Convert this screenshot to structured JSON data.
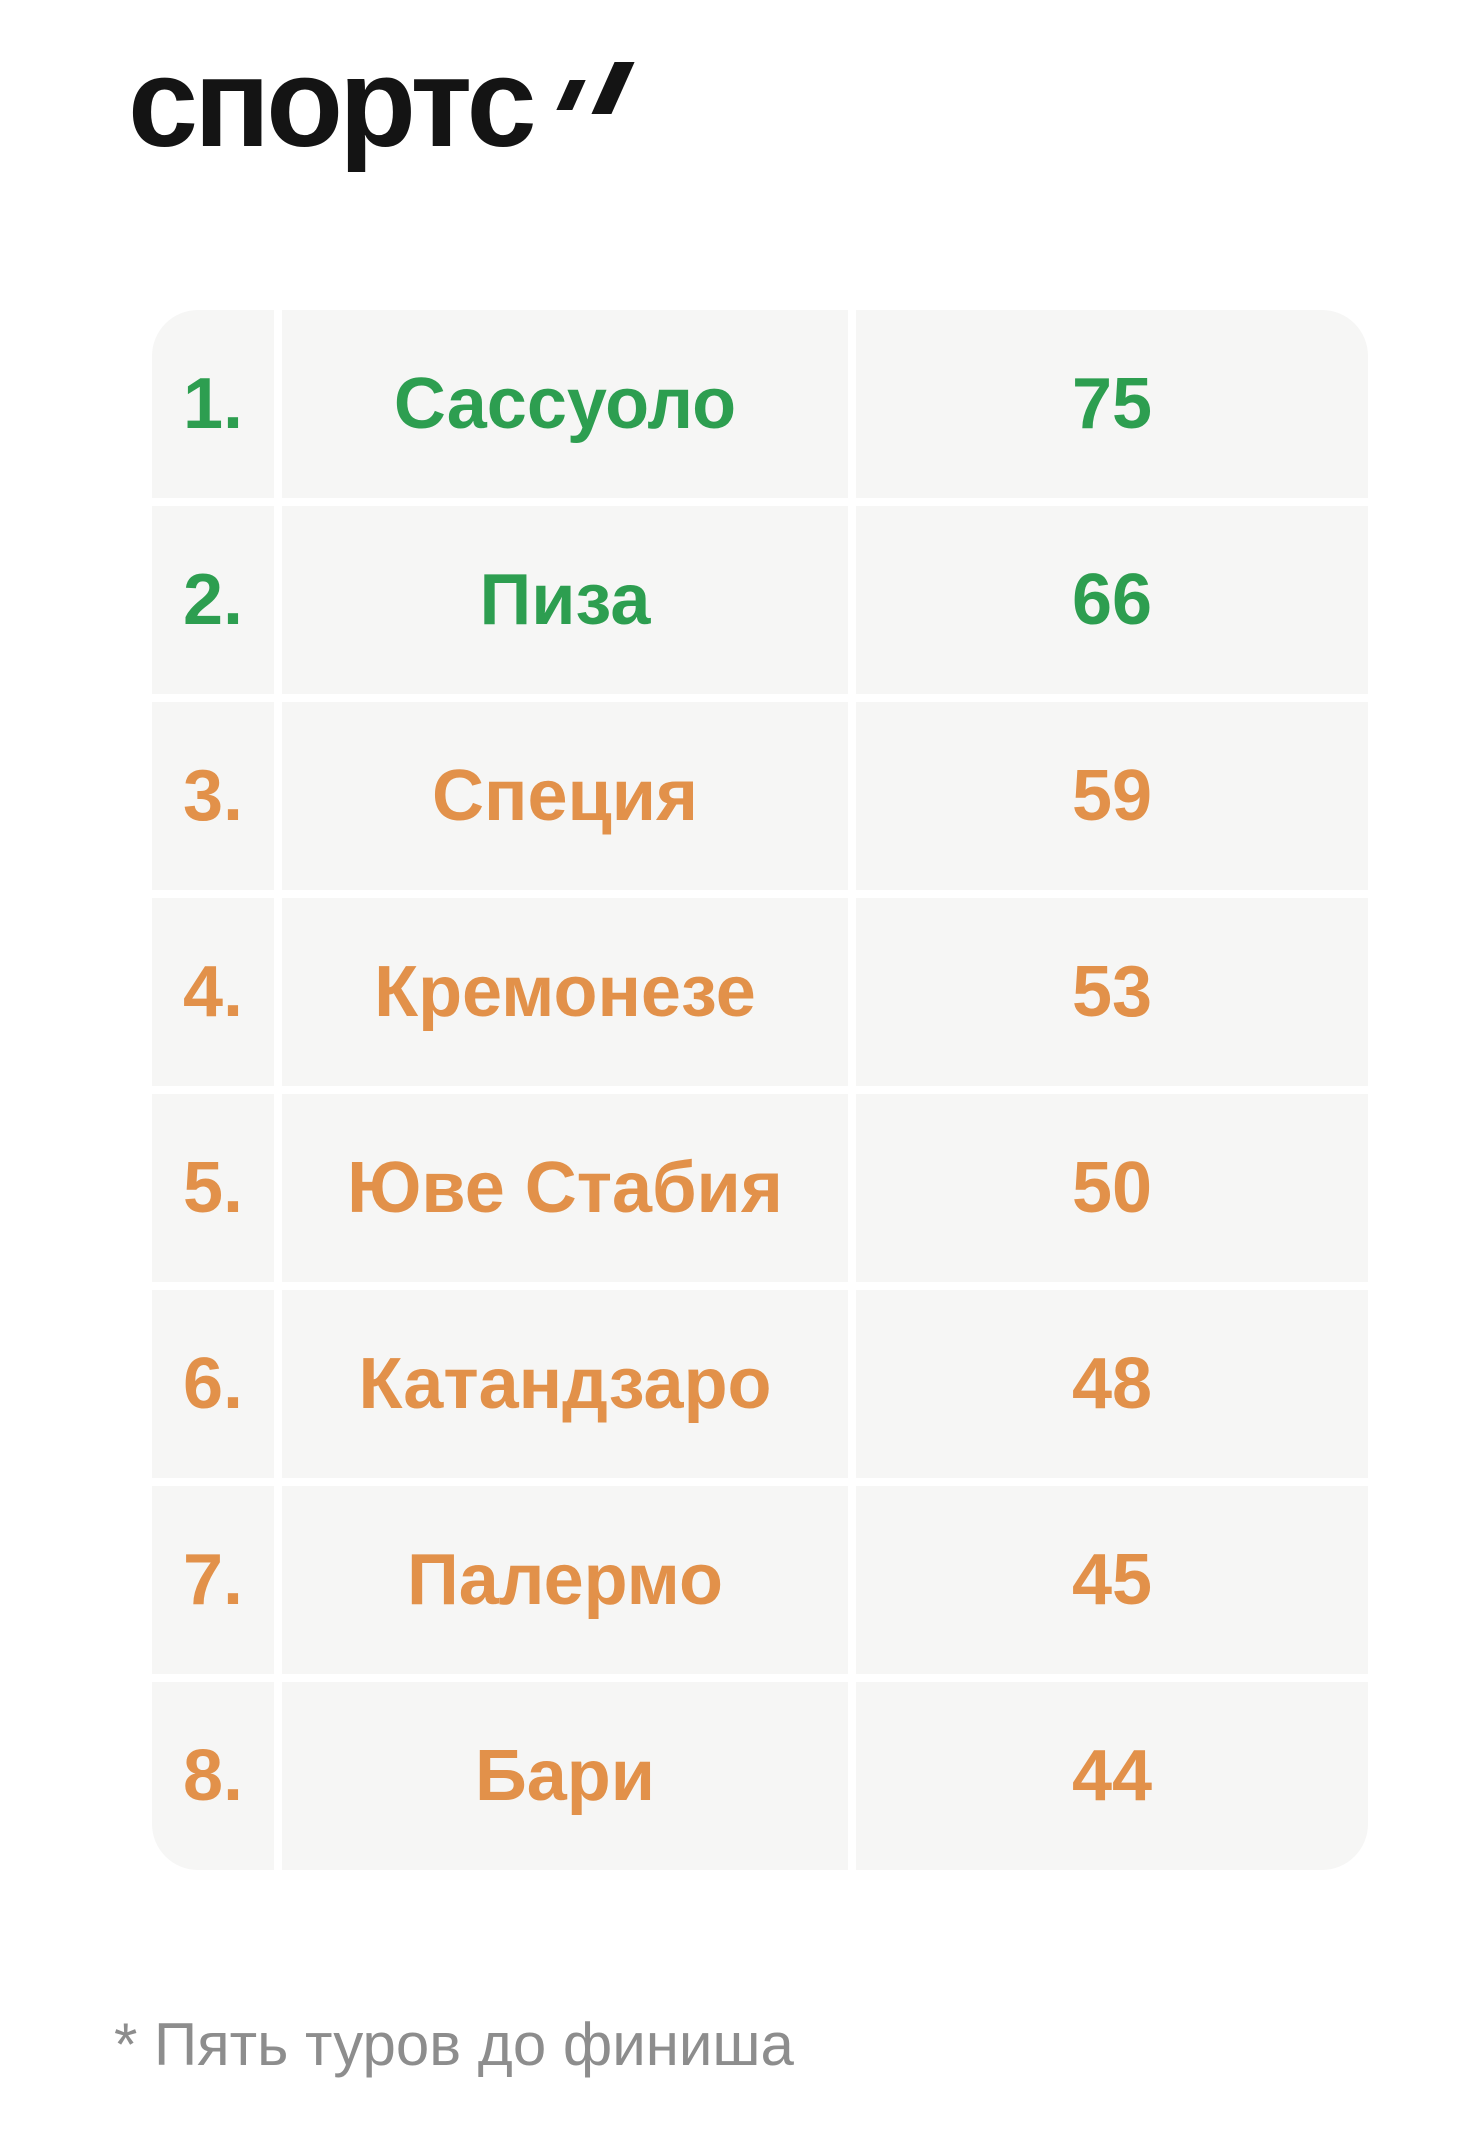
{
  "logo": {
    "text": "спортс"
  },
  "chart_data": {
    "type": "table",
    "columns": [
      "rank",
      "team",
      "points"
    ],
    "rows": [
      {
        "rank": "1.",
        "team": "Сассуоло",
        "points": "75",
        "color": "green"
      },
      {
        "rank": "2.",
        "team": "Пиза",
        "points": "66",
        "color": "green"
      },
      {
        "rank": "3.",
        "team": "Специя",
        "points": "59",
        "color": "orange"
      },
      {
        "rank": "4.",
        "team": "Кремонезе",
        "points": "53",
        "color": "orange"
      },
      {
        "rank": "5.",
        "team": "Юве Стабия",
        "points": "50",
        "color": "orange"
      },
      {
        "rank": "6.",
        "team": "Катандзаро",
        "points": "48",
        "color": "orange"
      },
      {
        "rank": "7.",
        "team": "Палермо",
        "points": "45",
        "color": "orange"
      },
      {
        "rank": "8.",
        "team": "Бари",
        "points": "44",
        "color": "orange"
      }
    ]
  },
  "footnote": "* Пять туров до финиша",
  "colors": {
    "green": "#2d9e50",
    "orange": "#e2914a",
    "footnote_gray": "#8d8d8d",
    "cell_background": "#f6f6f5",
    "logo_black": "#141414"
  }
}
